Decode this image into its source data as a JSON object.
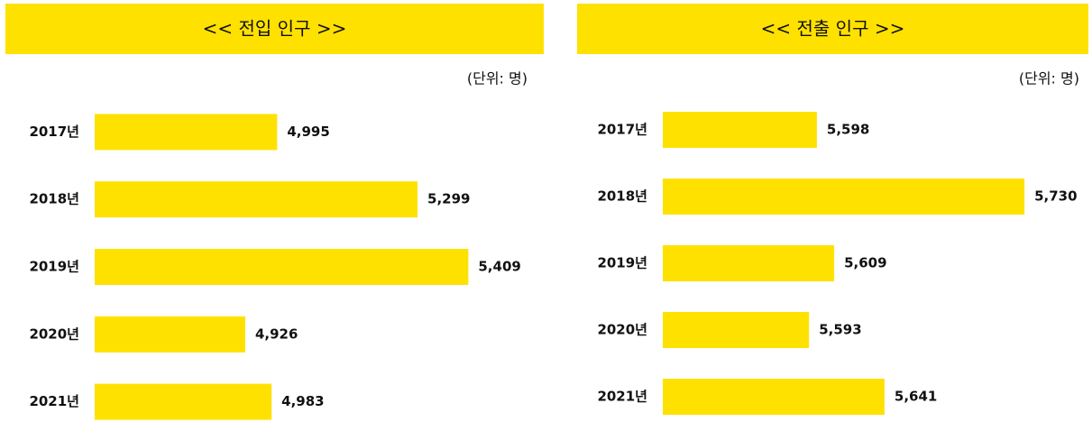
{
  "chart_data": [
    {
      "type": "bar",
      "orientation": "horizontal",
      "title": "<< 전입 인구 >>",
      "unit_label": "(단위: 명)",
      "categories": [
        "2017년",
        "2018년",
        "2019년",
        "2020년",
        "2021년"
      ],
      "values": [
        4995,
        5299,
        5409,
        4926,
        4983
      ],
      "value_labels": [
        "4,995",
        "5,299",
        "5,409",
        "4,926",
        "4,983"
      ],
      "color": "#ffe100",
      "xlim": [
        4600,
        5500
      ]
    },
    {
      "type": "bar",
      "orientation": "horizontal",
      "title": "<< 전출 인구 >>",
      "unit_label": "(단위: 명)",
      "categories": [
        "2017년",
        "2018년",
        "2019년",
        "2020년",
        "2021년"
      ],
      "values": [
        5598,
        5730,
        5609,
        5593,
        5641
      ],
      "value_labels": [
        "5,598",
        "5,730",
        "5,609",
        "5,593",
        "5,641"
      ],
      "color": "#ffe100",
      "xlim": [
        5500,
        5750
      ]
    }
  ]
}
